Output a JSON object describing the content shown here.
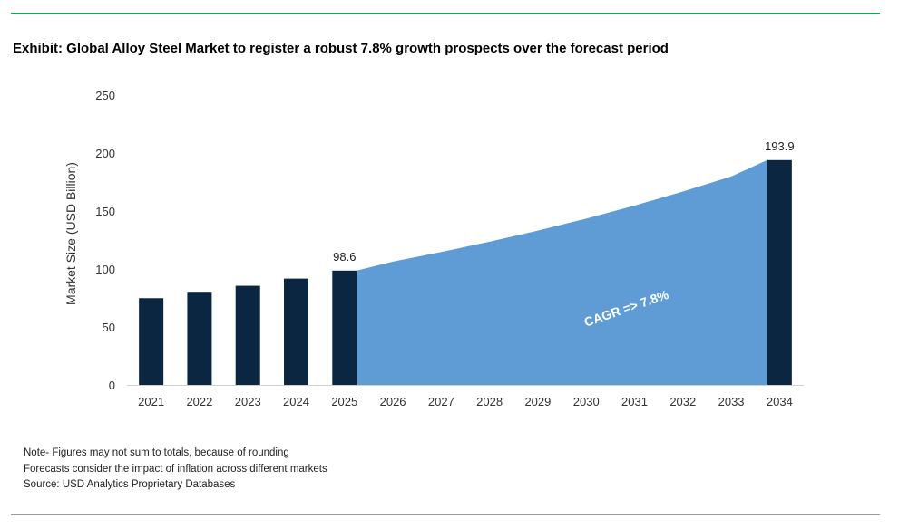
{
  "header": {
    "title": "Exhibit: Global Alloy Steel Market to register a robust 7.8% growth prospects over the forecast period"
  },
  "notes": [
    "Note- Figures may not sum to totals, because of rounding",
    "Forecasts consider the impact of inflation across different markets",
    "Source: USD Analytics Proprietary Databases"
  ],
  "colors": {
    "bar": "#0b2640",
    "area": "#5f9bd5",
    "accent_rule": "#1aa35a",
    "axis_text": "#333333"
  },
  "chart_data": {
    "type": "bar",
    "title": "Exhibit: Global Alloy Steel Market to register a robust 7.8% growth prospects over the forecast period",
    "xlabel": "",
    "ylabel": "Market Size (USD Billion)",
    "ylim": [
      0,
      250
    ],
    "yticks": [
      0,
      50,
      100,
      150,
      200,
      250
    ],
    "grid": false,
    "legend": "none",
    "categories": [
      "2021",
      "2022",
      "2023",
      "2024",
      "2025",
      "2026",
      "2027",
      "2028",
      "2029",
      "2030",
      "2031",
      "2032",
      "2033",
      "2034"
    ],
    "bars": [
      {
        "x": "2021",
        "value": 74.8
      },
      {
        "x": "2022",
        "value": 80.3
      },
      {
        "x": "2023",
        "value": 85.5
      },
      {
        "x": "2024",
        "value": 91.7
      },
      {
        "x": "2025",
        "value": 98.6
      },
      {
        "x": "2034",
        "value": 193.9
      }
    ],
    "data_labels": [
      {
        "x": "2025",
        "text": "98.6"
      },
      {
        "x": "2034",
        "text": "193.9"
      }
    ],
    "forecast_area": {
      "x": [
        "2025",
        "2026",
        "2027",
        "2028",
        "2029",
        "2030",
        "2031",
        "2032",
        "2033",
        "2034"
      ],
      "values": [
        98.6,
        106.3,
        114.6,
        123.5,
        133.1,
        143.5,
        154.7,
        166.8,
        179.8,
        193.9
      ]
    },
    "annotation": "CAGR => 7.8%"
  }
}
